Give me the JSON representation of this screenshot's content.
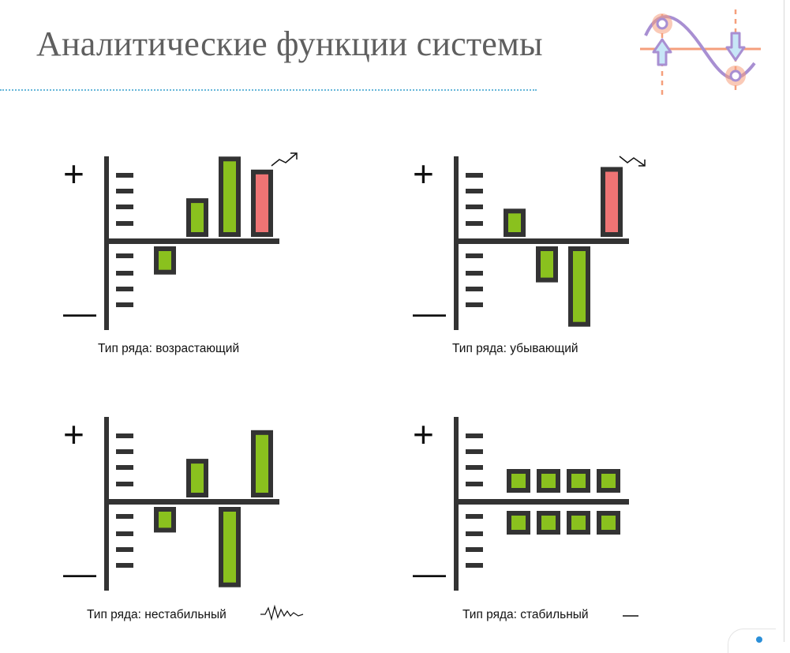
{
  "title": "Аналитические функции системы",
  "colors": {
    "axis": "#333333",
    "bar_fill": "#8ac11e",
    "bar_highlight": "#ef7474",
    "bar_border": "#333333",
    "logo_orange": "#f59f7c",
    "logo_purple": "#a88fd2",
    "logo_blue": "#c7e6f7",
    "divider": "#67b7d9"
  },
  "icons": {
    "logo": "wave-arrows-icon",
    "increasing": "trend-up-icon",
    "decreasing": "trend-down-icon",
    "unstable": "zigzag-icon",
    "stable": "flat-line-icon"
  },
  "panels": [
    {
      "plus": "+",
      "minus": "—",
      "caption": "Тип ряда: возрастающий",
      "icon": "trend-up-icon",
      "bars": [
        {
          "value": -0.45,
          "color": "green"
        },
        {
          "value": 0.65,
          "color": "green"
        },
        {
          "value": 1.45,
          "color": "green"
        },
        {
          "value": 1.2,
          "color": "red"
        }
      ]
    },
    {
      "plus": "+",
      "minus": "—",
      "caption": "Тип ряда: убывающий",
      "icon": "trend-down-icon",
      "bars": [
        {
          "value": 0.45,
          "color": "green"
        },
        {
          "value": -0.6,
          "color": "green"
        },
        {
          "value": -1.45,
          "color": "green"
        },
        {
          "value": 1.25,
          "color": "red"
        }
      ]
    },
    {
      "plus": "+",
      "minus": "—",
      "caption": "Тип ряда: нестабильный",
      "icon": "zigzag-icon",
      "bars": [
        {
          "value": -0.4,
          "color": "green"
        },
        {
          "value": 0.65,
          "color": "green"
        },
        {
          "value": -1.45,
          "color": "green"
        },
        {
          "value": 1.2,
          "color": "green"
        }
      ]
    },
    {
      "plus": "+",
      "minus": "—",
      "caption": "Тип ряда: стабильный",
      "icon": "flat-line-icon",
      "bars": [
        {
          "value": 0.45,
          "color": "green"
        },
        {
          "value": 0.45,
          "color": "green"
        },
        {
          "value": 0.45,
          "color": "green"
        },
        {
          "value": 0.45,
          "color": "green"
        },
        {
          "value": -0.45,
          "color": "green"
        },
        {
          "value": -0.45,
          "color": "green"
        },
        {
          "value": -0.45,
          "color": "green"
        },
        {
          "value": -0.45,
          "color": "green"
        }
      ]
    }
  ]
}
